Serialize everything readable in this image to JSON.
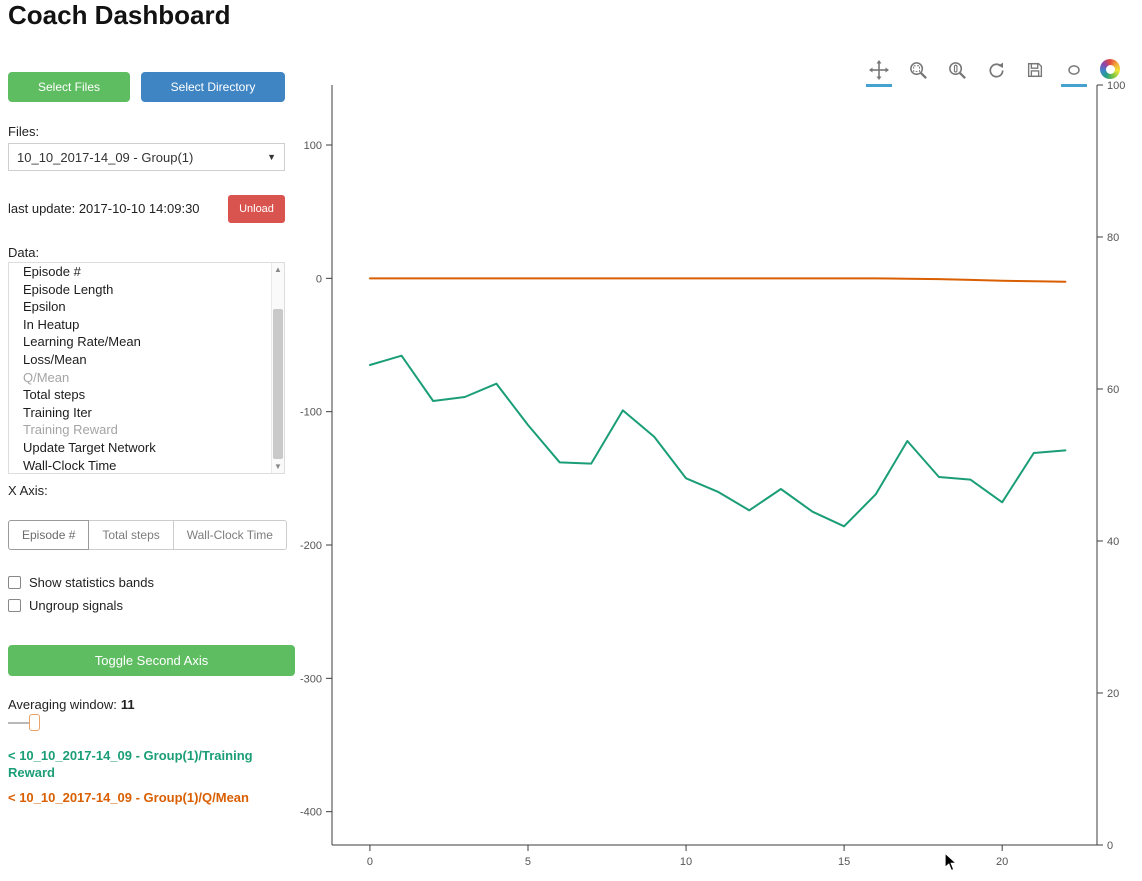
{
  "page": {
    "title": "Coach Dashboard"
  },
  "colors": {
    "green_button": "#5fbd61",
    "blue_button": "#3f85c4",
    "red_button": "#d9534f",
    "training_reward_line": "#1b9e77",
    "q_mean_line": "#d95f02",
    "tool_active_underline": "#45a1cf"
  },
  "sidebar": {
    "select_files_label": "Select Files",
    "select_directory_label": "Select Directory",
    "files_label": "Files:",
    "files_selected": "10_10_2017-14_09 - Group(1)",
    "last_update": "last update: 2017-10-10 14:09:30",
    "unload_label": "Unload",
    "data_label": "Data:",
    "data_items": [
      {
        "label": "Episode #",
        "disabled": false
      },
      {
        "label": "Episode Length",
        "disabled": false
      },
      {
        "label": "Epsilon",
        "disabled": false
      },
      {
        "label": "In Heatup",
        "disabled": false
      },
      {
        "label": "Learning Rate/Mean",
        "disabled": false
      },
      {
        "label": "Loss/Mean",
        "disabled": false
      },
      {
        "label": "Q/Mean",
        "disabled": true
      },
      {
        "label": "Total steps",
        "disabled": false
      },
      {
        "label": "Training Iter",
        "disabled": false
      },
      {
        "label": "Training Reward",
        "disabled": true
      },
      {
        "label": "Update Target Network",
        "disabled": false
      },
      {
        "label": "Wall-Clock Time",
        "disabled": false
      }
    ],
    "x_axis_label": "X Axis:",
    "x_axis_options": [
      "Episode #",
      "Total steps",
      "Wall-Clock Time"
    ],
    "x_axis_selected": "Episode #",
    "checkboxes": [
      {
        "label": "Show statistics bands",
        "checked": false
      },
      {
        "label": "Ungroup signals",
        "checked": false
      }
    ],
    "toggle_second_axis_label": "Toggle Second Axis",
    "averaging_label": "Averaging window:",
    "averaging_value": "11",
    "legend": [
      {
        "label": "< 10_10_2017-14_09 - Group(1)/Training Reward",
        "color": "#1b9e77"
      },
      {
        "label": "< 10_10_2017-14_09 - Group(1)/Q/Mean",
        "color": "#d95f02"
      }
    ]
  },
  "icons": {
    "select_caret": "▼",
    "scroll_up": "▲",
    "scroll_down": "▼"
  },
  "toolbar": {
    "tools": [
      {
        "name": "pan",
        "active": true
      },
      {
        "name": "box-zoom",
        "active": false
      },
      {
        "name": "wheel-zoom",
        "active": false
      },
      {
        "name": "reset",
        "active": false
      },
      {
        "name": "save",
        "active": false
      },
      {
        "name": "hover",
        "active": true
      }
    ]
  },
  "chart_data": {
    "type": "line",
    "title": "",
    "xlabel": "",
    "ylabel": "",
    "grid": false,
    "legend_position": "external-left-sidebar",
    "x": [
      0,
      1,
      2,
      3,
      4,
      5,
      6,
      7,
      8,
      9,
      10,
      11,
      12,
      13,
      14,
      15,
      16,
      17,
      18,
      19,
      20,
      21,
      22
    ],
    "series": [
      {
        "name": "10_10_2017-14_09 - Group(1)/Training Reward",
        "color": "#1b9e77",
        "axis": "left",
        "values": [
          -65,
          -58,
          -92,
          -89,
          -79,
          -110,
          -138,
          -139,
          -99,
          -119,
          -150,
          -160,
          -174,
          -158,
          -175,
          -186,
          -162,
          -122,
          -149,
          -151,
          -168,
          -131,
          -129
        ]
      },
      {
        "name": "10_10_2017-14_09 - Group(1)/Q/Mean",
        "color": "#d95f02",
        "axis": "left",
        "values": [
          0,
          0,
          0,
          0,
          0,
          0,
          0,
          0,
          0,
          0,
          0,
          0,
          0,
          0,
          0,
          0,
          0,
          -0.3,
          -0.6,
          -1.2,
          -1.8,
          -2.2,
          -2.6
        ]
      }
    ],
    "left_axis": {
      "ticks": [
        100,
        0,
        -100,
        -200,
        -300,
        -400
      ],
      "range": [
        -425,
        145
      ]
    },
    "right_axis": {
      "ticks": [
        100,
        80,
        60,
        40,
        20,
        0
      ],
      "range": [
        0,
        100
      ]
    },
    "x_axis": {
      "ticks": [
        0,
        5,
        10,
        15,
        20
      ],
      "range": [
        -1.2,
        23
      ]
    }
  }
}
